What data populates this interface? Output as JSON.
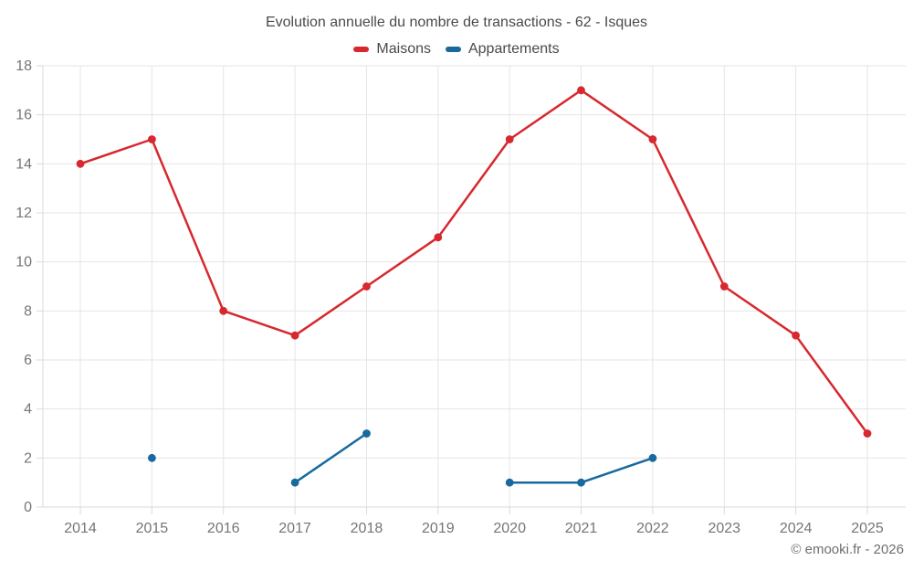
{
  "chart_data": {
    "type": "line",
    "title": "Evolution annuelle du nombre de transactions - 62 - Isques",
    "categories": [
      "2014",
      "2015",
      "2016",
      "2017",
      "2018",
      "2019",
      "2020",
      "2021",
      "2022",
      "2023",
      "2024",
      "2025"
    ],
    "series": [
      {
        "name": "Maisons",
        "color": "#d7282f",
        "values": [
          14,
          15,
          8,
          7,
          9,
          11,
          15,
          17,
          15,
          9,
          7,
          3
        ]
      },
      {
        "name": "Appartements",
        "color": "#17699e",
        "values": [
          null,
          2,
          null,
          1,
          3,
          null,
          1,
          1,
          2,
          null,
          null,
          null
        ]
      }
    ],
    "xlabel": "",
    "ylabel": "",
    "ylim": [
      0,
      18
    ],
    "ytick_step": 2,
    "grid": true,
    "legend_position": "top",
    "footer": "© emooki.fr - 2026",
    "colors": {
      "gridline": "#e5e5e5",
      "axis_line": "#d9d9d9",
      "tick_label": "#757575",
      "title_text": "#4a4a4a",
      "footer_text": "#6f6f6f",
      "background": "#ffffff"
    }
  }
}
